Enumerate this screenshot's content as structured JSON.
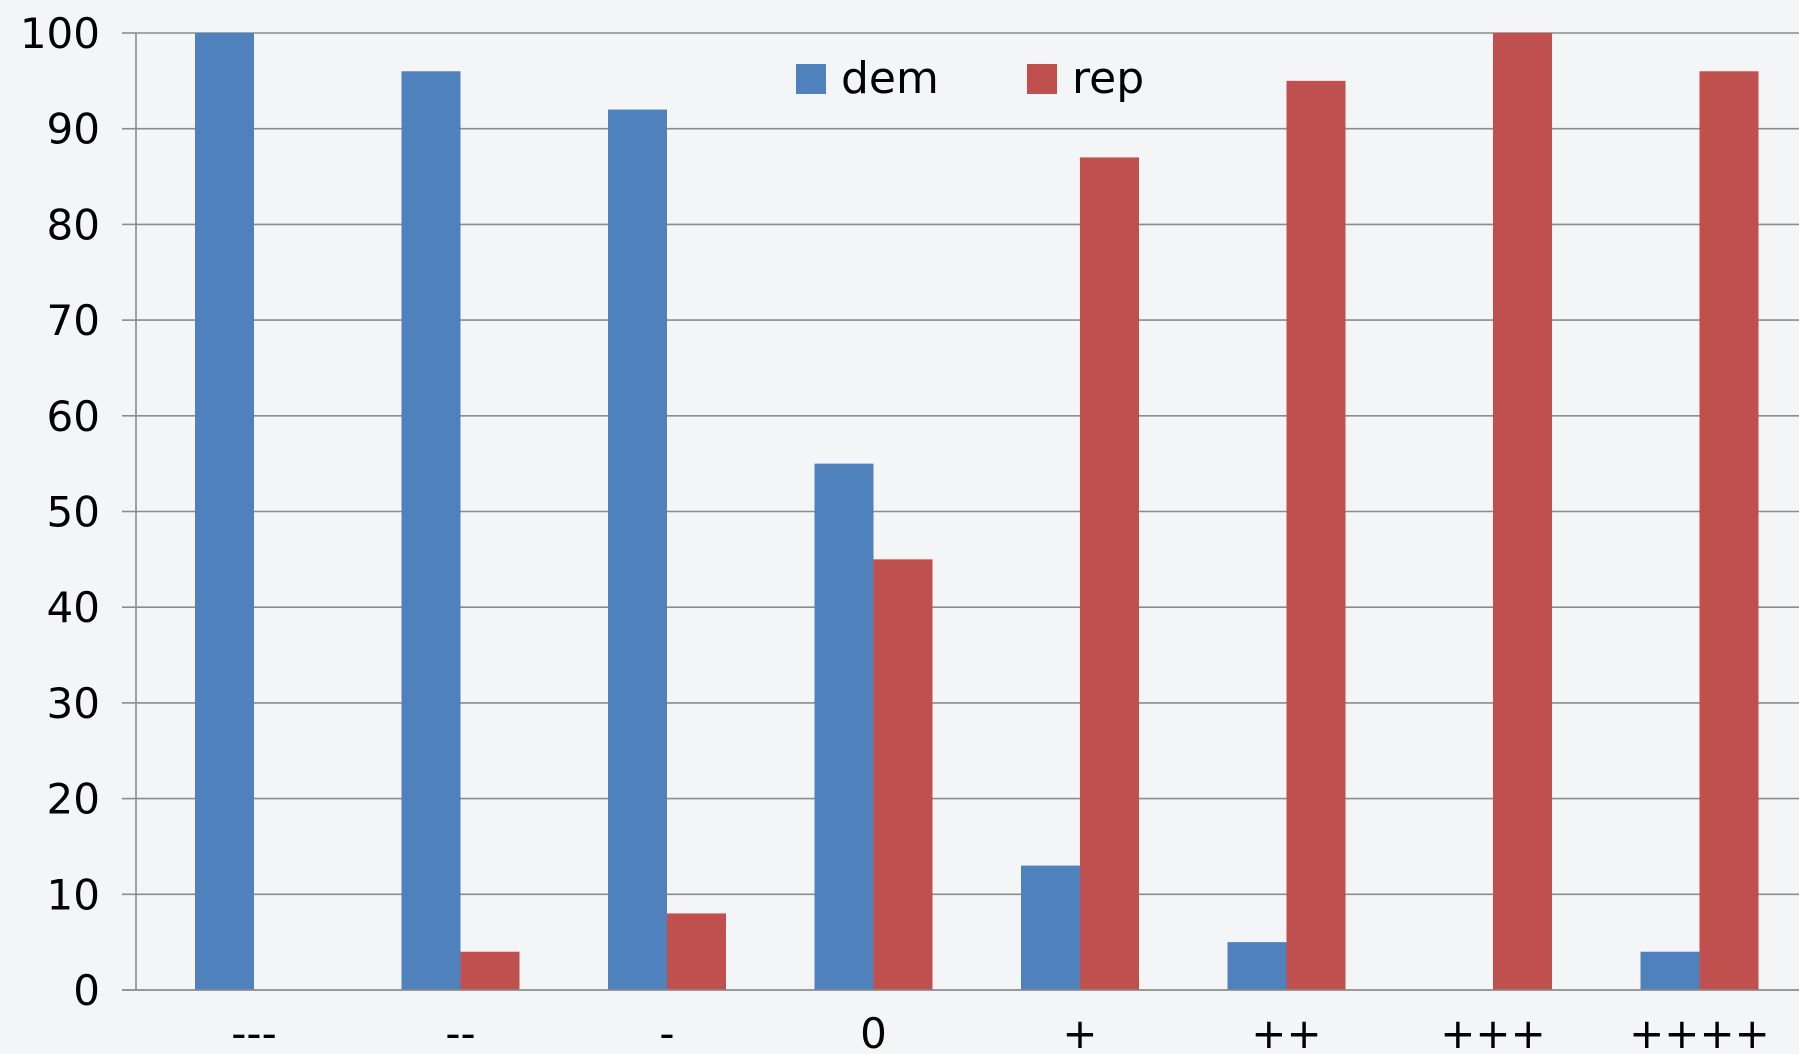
{
  "chart_data": {
    "type": "bar",
    "title": "",
    "xlabel": "",
    "ylabel": "",
    "categories": [
      "---",
      "--",
      "-",
      "0",
      "+",
      "++",
      "+++",
      "++++"
    ],
    "series": [
      {
        "name": "dem",
        "color": "#4f81bd",
        "values": [
          100,
          96,
          92,
          55,
          13,
          5,
          0,
          4
        ]
      },
      {
        "name": "rep",
        "color": "#c0504d",
        "values": [
          0,
          4,
          8,
          45,
          87,
          95,
          100,
          96
        ]
      }
    ],
    "ylim": [
      0,
      100
    ],
    "yticks": [
      0,
      10,
      20,
      30,
      40,
      50,
      60,
      70,
      80,
      90,
      100
    ],
    "grid": true,
    "legend_position": "top-center"
  }
}
